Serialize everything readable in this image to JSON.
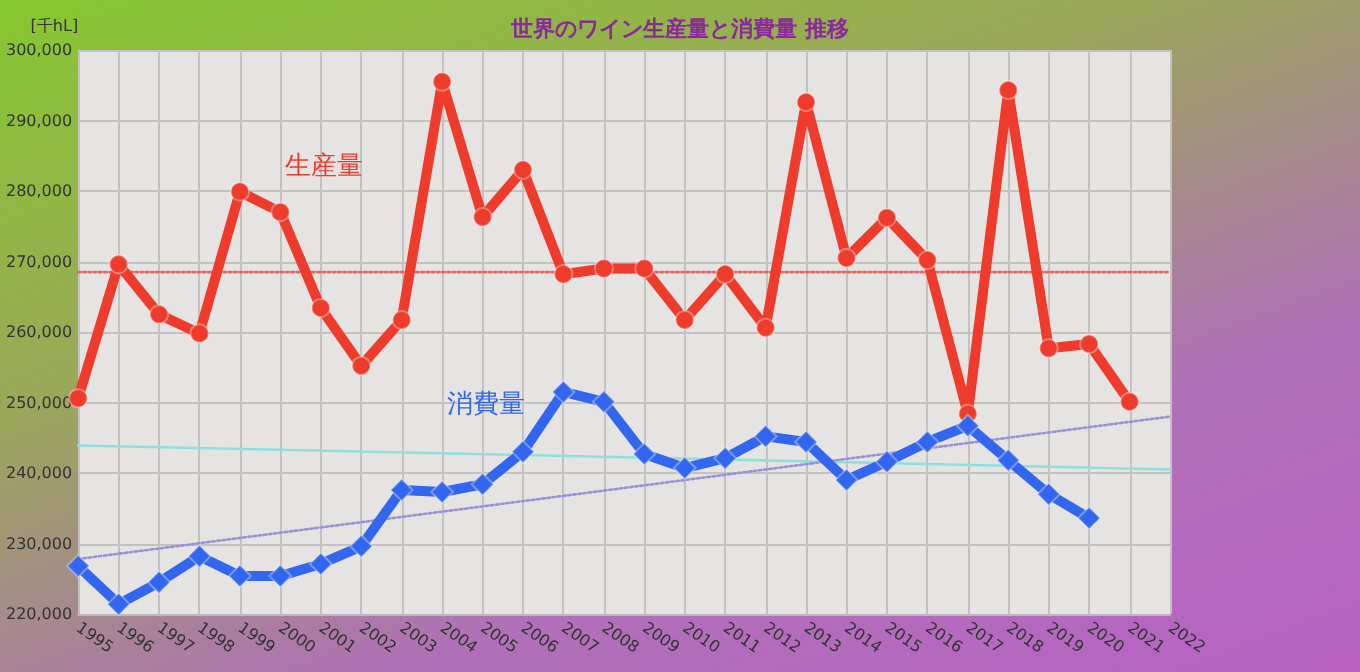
{
  "chart_data": {
    "type": "line",
    "title": "世界のワイン生産量と消費量 推移",
    "ylabel": "[千hL]",
    "x": [
      1995,
      1996,
      1997,
      1998,
      1999,
      2000,
      2001,
      2002,
      2003,
      2004,
      2005,
      2006,
      2007,
      2008,
      2009,
      2010,
      2011,
      2012,
      2013,
      2014,
      2015,
      2016,
      2017,
      2018,
      2019,
      2020,
      2021
    ],
    "series": [
      {
        "name": "生産量",
        "color": "#ee3b2b",
        "marker": "circle",
        "line_style": "solid",
        "values": [
          250600,
          269600,
          262500,
          259800,
          279900,
          277000,
          263400,
          255200,
          261700,
          295500,
          276300,
          283000,
          268200,
          269000,
          269000,
          261700,
          268200,
          260600,
          292600,
          270500,
          276200,
          270200,
          248400,
          294300,
          257700,
          258300,
          250100
        ]
      },
      {
        "name": "消費量",
        "color": "#3366ee",
        "marker": "diamond",
        "line_style": "solid",
        "values": [
          226800,
          221400,
          224500,
          228200,
          225400,
          225400,
          227100,
          229600,
          237600,
          237300,
          238400,
          243000,
          251500,
          250100,
          242700,
          240700,
          242100,
          245200,
          244400,
          239000,
          241600,
          244400,
          246700,
          241800,
          237000,
          233600,
          null
        ]
      },
      {
        "type": "line",
        "color": "#e06868",
        "marker": "none",
        "line_style": "dotted",
        "x": [
          1995,
          2008,
          2022
        ],
        "values": [
          268500,
          268500,
          268500
        ]
      },
      {
        "type": "line",
        "color": "#8fe0dc",
        "marker": "none",
        "line_style": "solid",
        "x": [
          1995,
          2008,
          2022
        ],
        "values": [
          243900,
          242300,
          240500
        ]
      },
      {
        "type": "line",
        "color": "#9a90d8",
        "marker": "none",
        "line_style": "dotted",
        "x": [
          1995,
          2008,
          2022
        ],
        "values": [
          227800,
          237500,
          248000
        ]
      }
    ],
    "xlim": [
      1995,
      2022
    ],
    "xticks": [
      1995,
      1996,
      1997,
      1998,
      1999,
      2000,
      2001,
      2002,
      2003,
      2004,
      2005,
      2006,
      2007,
      2008,
      2009,
      2010,
      2011,
      2012,
      2013,
      2014,
      2015,
      2016,
      2017,
      2018,
      2019,
      2020,
      2021,
      2022
    ],
    "ylim": [
      220000,
      300000
    ],
    "yticks": [
      {
        "value": 220000,
        "label": "220,000"
      },
      {
        "value": 230000,
        "label": "230,000"
      },
      {
        "value": 240000,
        "label": "240,000"
      },
      {
        "value": 250000,
        "label": "250,000"
      },
      {
        "value": 260000,
        "label": "260,000"
      },
      {
        "value": 270000,
        "label": "270,000"
      },
      {
        "value": 280000,
        "label": "280,000"
      },
      {
        "value": 290000,
        "label": "290,000"
      },
      {
        "value": 300000,
        "label": "300,000"
      }
    ],
    "grid": true,
    "legend": false
  }
}
